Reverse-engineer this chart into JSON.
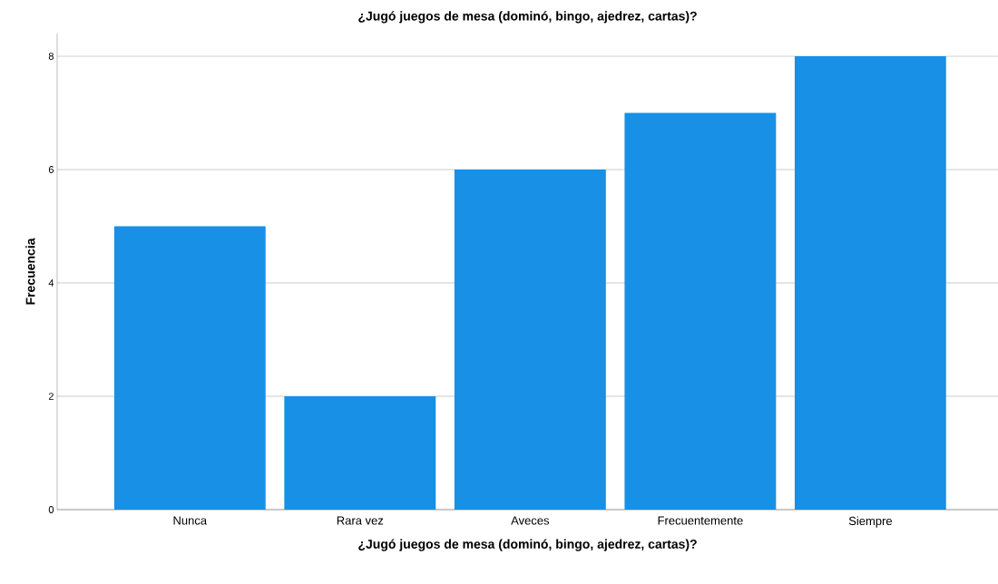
{
  "chart_data": {
    "type": "bar",
    "title": "¿Jugó juegos de mesa (dominó, bingo, ajedrez, cartas)?",
    "xlabel": "¿Jugó juegos de mesa (dominó, bingo, ajedrez, cartas)?",
    "ylabel": "Frecuencia",
    "categories": [
      "Nunca",
      "Rara vez",
      "Aveces",
      "Frecuentemente",
      "Siempre"
    ],
    "values": [
      5,
      2,
      6,
      7,
      8
    ],
    "color": "#1790e6",
    "ylim": [
      0,
      8.4
    ],
    "yticks": [
      0,
      2,
      4,
      6,
      8
    ],
    "grid": "y"
  }
}
